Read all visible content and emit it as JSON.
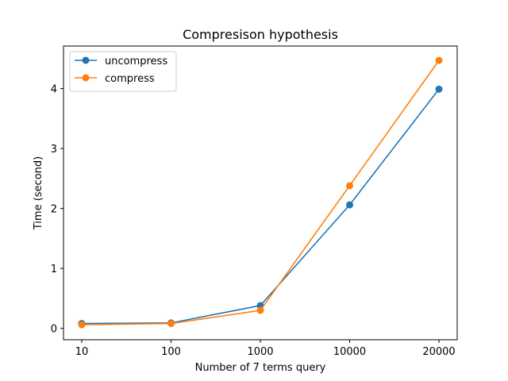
{
  "chart_data": {
    "type": "line",
    "title": "Compresison hypothesis",
    "xlabel": "Number of 7 terms query",
    "ylabel": "Time (second)",
    "categories": [
      "10",
      "100",
      "1000",
      "10000",
      "20000"
    ],
    "ylim": [
      -0.19,
      4.71
    ],
    "yticks": [
      0,
      1,
      2,
      3,
      4
    ],
    "grid": false,
    "legend_position": "top-left",
    "series": [
      {
        "name": "uncompress",
        "color": "#1f77b4",
        "values": [
          0.08,
          0.09,
          0.38,
          2.06,
          3.99
        ]
      },
      {
        "name": "compress",
        "color": "#ff7f0e",
        "values": [
          0.06,
          0.08,
          0.3,
          2.38,
          4.47
        ]
      }
    ]
  }
}
